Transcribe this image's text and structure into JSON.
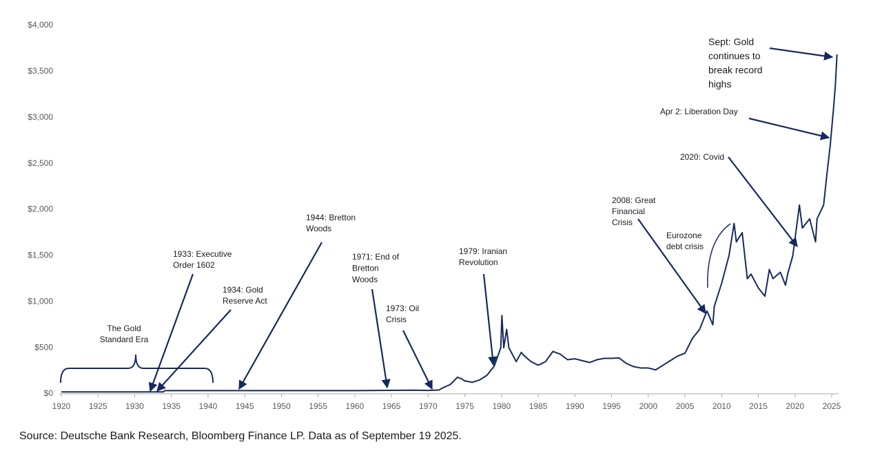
{
  "chart_data": {
    "type": "line",
    "source": "Source: Deutsche Bank Research, Bloomberg Finance LP.  Data as of September 19 2025.",
    "color": "#14295e",
    "x": [
      1920,
      1925,
      1930,
      1933.9,
      1934.1,
      1940,
      1950,
      1960,
      1968,
      1970,
      1971.5,
      1972,
      1973,
      1974,
      1974.5,
      1975,
      1976,
      1977,
      1978,
      1979,
      1979.9,
      1980.05,
      1980.3,
      1980.7,
      1981,
      1982,
      1982.7,
      1983,
      1984,
      1985,
      1986,
      1987,
      1988,
      1989,
      1990,
      1991,
      1992,
      1993,
      1994,
      1995,
      1996,
      1997,
      1998,
      1999,
      2000,
      2001,
      2002,
      2003,
      2004,
      2005,
      2006,
      2007,
      2008,
      2008.8,
      2009,
      2010,
      2011,
      2011.7,
      2012,
      2012.8,
      2013.5,
      2014,
      2015,
      2015.9,
      2016.5,
      2017,
      2018,
      2018.7,
      2019,
      2019.7,
      2020.6,
      2021,
      2022,
      2022.8,
      2023,
      2023.9,
      2024.3,
      2024.8,
      2025.25,
      2025.5,
      2025.72
    ],
    "values": [
      20.67,
      20.67,
      20.67,
      20.67,
      35,
      35,
      35,
      35,
      39,
      36,
      42,
      65,
      100,
      180,
      165,
      140,
      125,
      150,
      200,
      300,
      500,
      850,
      500,
      700,
      500,
      350,
      450,
      420,
      350,
      310,
      350,
      460,
      430,
      370,
      380,
      360,
      340,
      370,
      385,
      385,
      390,
      330,
      295,
      280,
      280,
      260,
      310,
      360,
      410,
      440,
      600,
      700,
      900,
      750,
      950,
      1200,
      1500,
      1850,
      1650,
      1750,
      1250,
      1300,
      1150,
      1060,
      1350,
      1250,
      1320,
      1180,
      1300,
      1500,
      2050,
      1800,
      1900,
      1650,
      1900,
      2050,
      2350,
      2700,
      3100,
      3350,
      3685
    ],
    "xlim": [
      1920,
      2025
    ],
    "xticks": [
      1920,
      1925,
      1930,
      1935,
      1940,
      1945,
      1950,
      1955,
      1960,
      1965,
      1970,
      1975,
      1980,
      1985,
      1990,
      1995,
      2000,
      2005,
      2010,
      2015,
      2020,
      2025
    ],
    "ylim": [
      0,
      4000
    ],
    "yticks": [
      {
        "value": 0,
        "label": "$0"
      },
      {
        "value": 500,
        "label": "$500"
      },
      {
        "value": 1000,
        "label": "$1,000"
      },
      {
        "value": 1500,
        "label": "$1,500"
      },
      {
        "value": 2000,
        "label": "$2,000"
      },
      {
        "value": 2500,
        "label": "$2,500"
      },
      {
        "value": 3000,
        "label": "$3,000"
      },
      {
        "value": 3500,
        "label": "$3,500"
      },
      {
        "value": 4000,
        "label": "$4,000"
      }
    ],
    "annotations": [
      {
        "lines": [
          "The Gold",
          "Standard Era"
        ]
      },
      {
        "lines": [
          "1933: Executive",
          "Order 1602"
        ]
      },
      {
        "lines": [
          "1934: Gold",
          "Reserve Act"
        ]
      },
      {
        "lines": [
          "1944: Bretton",
          "Woods"
        ]
      },
      {
        "lines": [
          "1971: End of",
          "Bretton",
          "Woods"
        ]
      },
      {
        "lines": [
          "1973: Oil",
          "Crisis"
        ]
      },
      {
        "lines": [
          "1979: Iranian",
          "Revolution"
        ]
      },
      {
        "lines": [
          "2008: Great",
          "Financial",
          "Crisis"
        ]
      },
      {
        "lines": [
          "Eurozone",
          "debt crisis"
        ]
      },
      {
        "lines": [
          "2020: Covid"
        ]
      },
      {
        "lines": [
          "Apr 2: Liberation Day"
        ]
      },
      {
        "lines": [
          "Sept: Gold",
          "continues to",
          "break record",
          "highs"
        ]
      }
    ]
  }
}
